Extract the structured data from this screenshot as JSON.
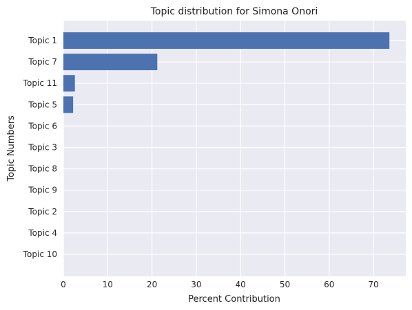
{
  "chart_data": {
    "type": "bar",
    "orientation": "horizontal",
    "title": "Topic distribution for Simona Onori",
    "xlabel": "Percent Contribution",
    "ylabel": "Topic Numbers",
    "categories": [
      "Topic 1",
      "Topic 7",
      "Topic 11",
      "Topic 5",
      "Topic 6",
      "Topic 3",
      "Topic 8",
      "Topic 9",
      "Topic 2",
      "Topic 4",
      "Topic 10"
    ],
    "values": [
      73.6,
      21.2,
      2.6,
      2.2,
      0,
      0,
      0,
      0,
      0,
      0,
      0
    ],
    "xlim": [
      0,
      77.3
    ],
    "xticks": [
      0,
      10,
      20,
      30,
      40,
      50,
      60,
      70
    ],
    "grid": true,
    "bar_color": "#4c72b0",
    "background_color": "#eaeaf2"
  }
}
